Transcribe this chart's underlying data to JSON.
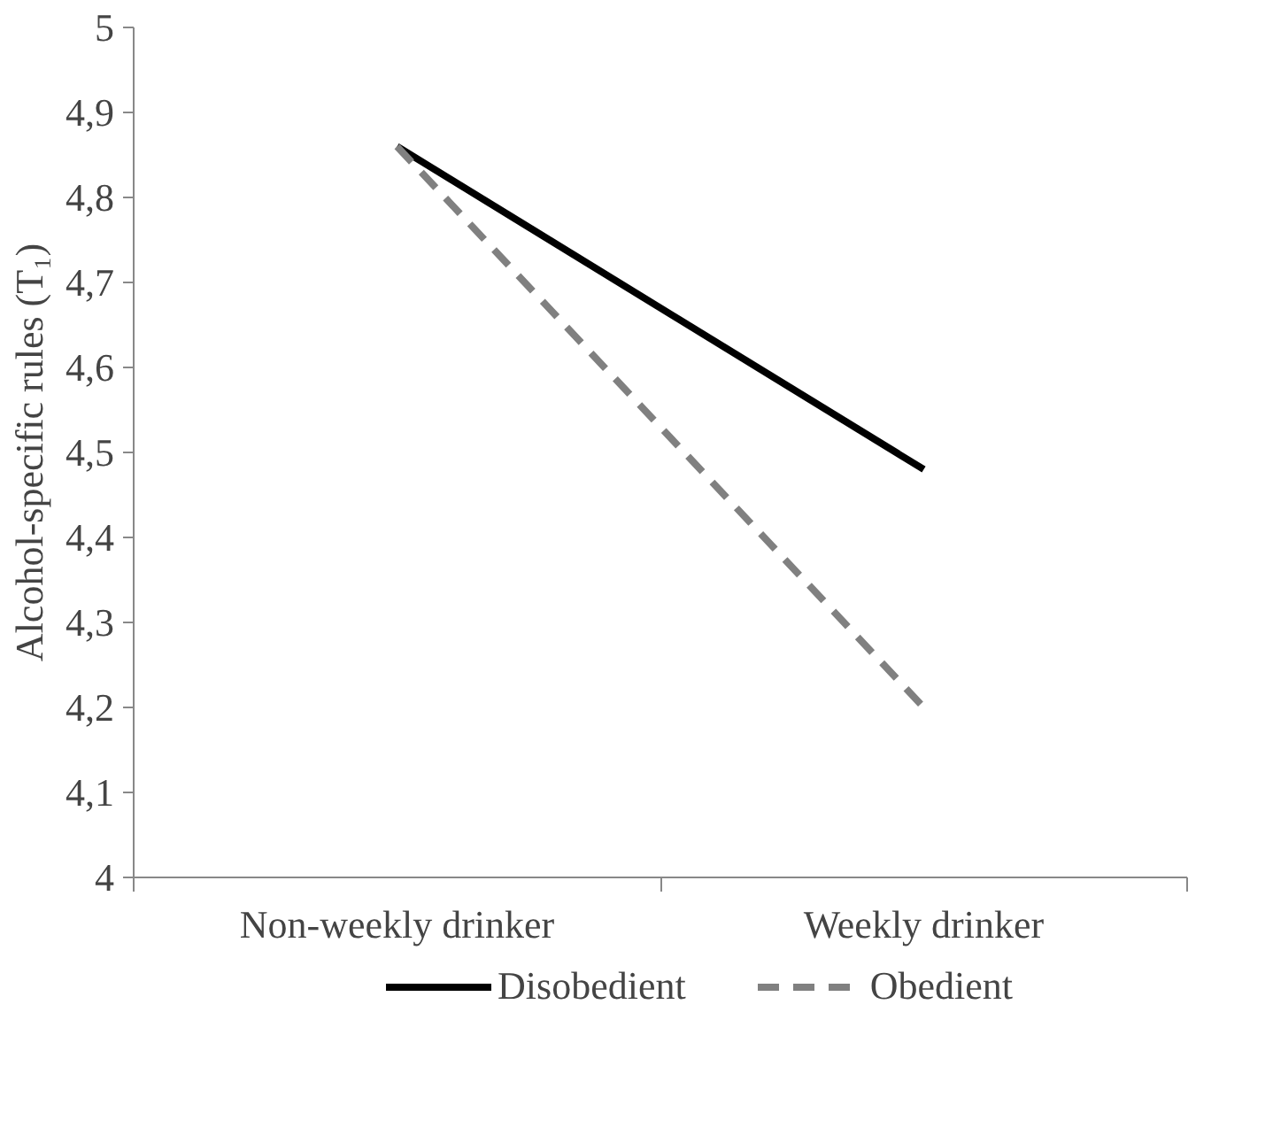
{
  "chart_data": {
    "type": "line",
    "ylabel": "Alcohol-specific rules (T₁)",
    "categories": [
      "Non-weekly drinker",
      "Weekly drinker"
    ],
    "series": [
      {
        "name": "Disobedient",
        "color": "#000000",
        "line_style": "solid",
        "values": [
          4.86,
          4.48
        ]
      },
      {
        "name": "Obedient",
        "color": "#808080",
        "line_style": "dashed",
        "values": [
          4.86,
          4.2
        ]
      }
    ],
    "ylim": [
      4,
      5
    ],
    "yticks": [
      4,
      {
        "value": 4.1,
        "label": "4,1"
      },
      {
        "value": 4.2,
        "label": "4,2"
      },
      {
        "value": 4.3,
        "label": "4,3"
      },
      {
        "value": 4.4,
        "label": "4,4"
      },
      {
        "value": 4.5,
        "label": "4,5"
      },
      {
        "value": 4.6,
        "label": "4,6"
      },
      {
        "value": 4.7,
        "label": "4,7"
      },
      {
        "value": 4.8,
        "label": "4,8"
      },
      {
        "value": 4.9,
        "label": "4,9"
      },
      5
    ],
    "grid": false,
    "legend": "bottom"
  }
}
